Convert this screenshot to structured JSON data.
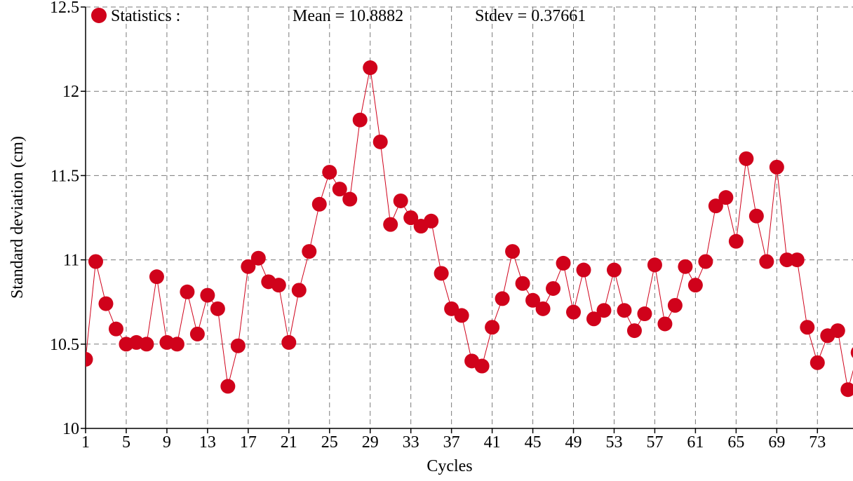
{
  "chart_data": {
    "type": "scatter",
    "title": "",
    "xlabel": "Cycles",
    "ylabel": "Standard deviation (cm)",
    "xlim": [
      1,
      76.5
    ],
    "ylim": [
      10,
      12.5
    ],
    "x_ticks": [
      1,
      5,
      9,
      13,
      17,
      21,
      25,
      29,
      33,
      37,
      41,
      45,
      49,
      53,
      57,
      61,
      65,
      69,
      73
    ],
    "x_tick_labels": [
      "1",
      "5",
      "9",
      "13",
      "17",
      "21",
      "25",
      "29",
      "33",
      "37",
      "41",
      "45",
      "49",
      "53",
      "57",
      "61",
      "65",
      "69",
      "73"
    ],
    "y_ticks": [
      10,
      10.5,
      11,
      11.5,
      12,
      12.5
    ],
    "y_tick_labels": [
      "10",
      "10.5",
      "11",
      "11.5",
      "12",
      "12.5"
    ],
    "grid": true,
    "legend_position": "top-left",
    "legend": {
      "label": "Statistics :",
      "mean_text": "Mean = 10.8882",
      "stdev_text": "Stdev = 0.37661"
    },
    "color": "#d0021b",
    "series": [
      {
        "x": [
          1,
          2,
          3,
          4,
          5,
          6,
          7,
          8,
          9,
          10,
          11,
          12,
          13,
          14,
          15,
          16,
          17,
          18,
          19,
          20,
          21,
          22,
          23,
          24,
          25,
          26,
          27,
          28,
          29,
          30,
          31,
          32,
          33,
          34,
          35,
          36,
          37,
          38,
          39,
          40,
          41,
          42,
          43,
          44,
          45,
          46,
          47,
          48,
          49,
          50,
          51,
          52,
          53,
          54,
          55,
          56,
          57,
          58,
          59,
          60,
          61,
          62,
          63,
          64,
          65,
          66,
          67,
          68,
          69,
          70,
          71,
          72,
          73,
          74,
          75,
          76,
          77
        ],
        "values": [
          10.41,
          10.99,
          10.74,
          10.59,
          10.5,
          10.51,
          10.5,
          10.9,
          10.51,
          10.5,
          10.81,
          10.56,
          10.79,
          10.71,
          10.25,
          10.49,
          10.96,
          11.01,
          10.87,
          10.85,
          10.51,
          10.82,
          11.05,
          11.33,
          11.52,
          11.42,
          11.36,
          11.83,
          12.14,
          11.7,
          11.21,
          11.35,
          11.25,
          11.2,
          11.23,
          10.92,
          10.71,
          10.67,
          10.4,
          10.37,
          10.6,
          10.77,
          11.05,
          10.86,
          10.76,
          10.71,
          10.83,
          10.98,
          10.69,
          10.94,
          10.65,
          10.7,
          10.94,
          10.7,
          10.58,
          10.68,
          10.97,
          10.62,
          10.73,
          10.96,
          10.85,
          10.99,
          11.32,
          11.37,
          11.11,
          11.6,
          11.26,
          10.99,
          11.55,
          11.0,
          11.0,
          10.6,
          10.39,
          10.55,
          10.58,
          10.23,
          10.45
        ]
      }
    ]
  }
}
